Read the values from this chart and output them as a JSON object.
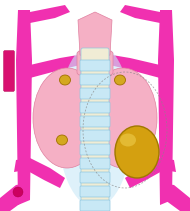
{
  "bg_color": "#ffffff",
  "thyroid_color": "#f5b0c5",
  "thyroid_edge": "#e080a0",
  "vessel_color": "#f030b0",
  "vessel_color2": "#ee40b8",
  "trachea_color": "#f0ecd5",
  "trachea_ring_color": "#c8e8f5",
  "trachea_ring_edge": "#90c8e0",
  "trachea_glow": "#c8e8f8",
  "adenoma_color": "#d4a010",
  "adenoma_highlight": "#f0d050",
  "adenoma_edge": "#a07800",
  "normal_pt_color": "#d4a820",
  "normal_pt_edge": "#a07000",
  "dashed_line_color": "#888888",
  "larynx_color": "#f5b0c5",
  "larynx_top_color": "#e8c0d0"
}
